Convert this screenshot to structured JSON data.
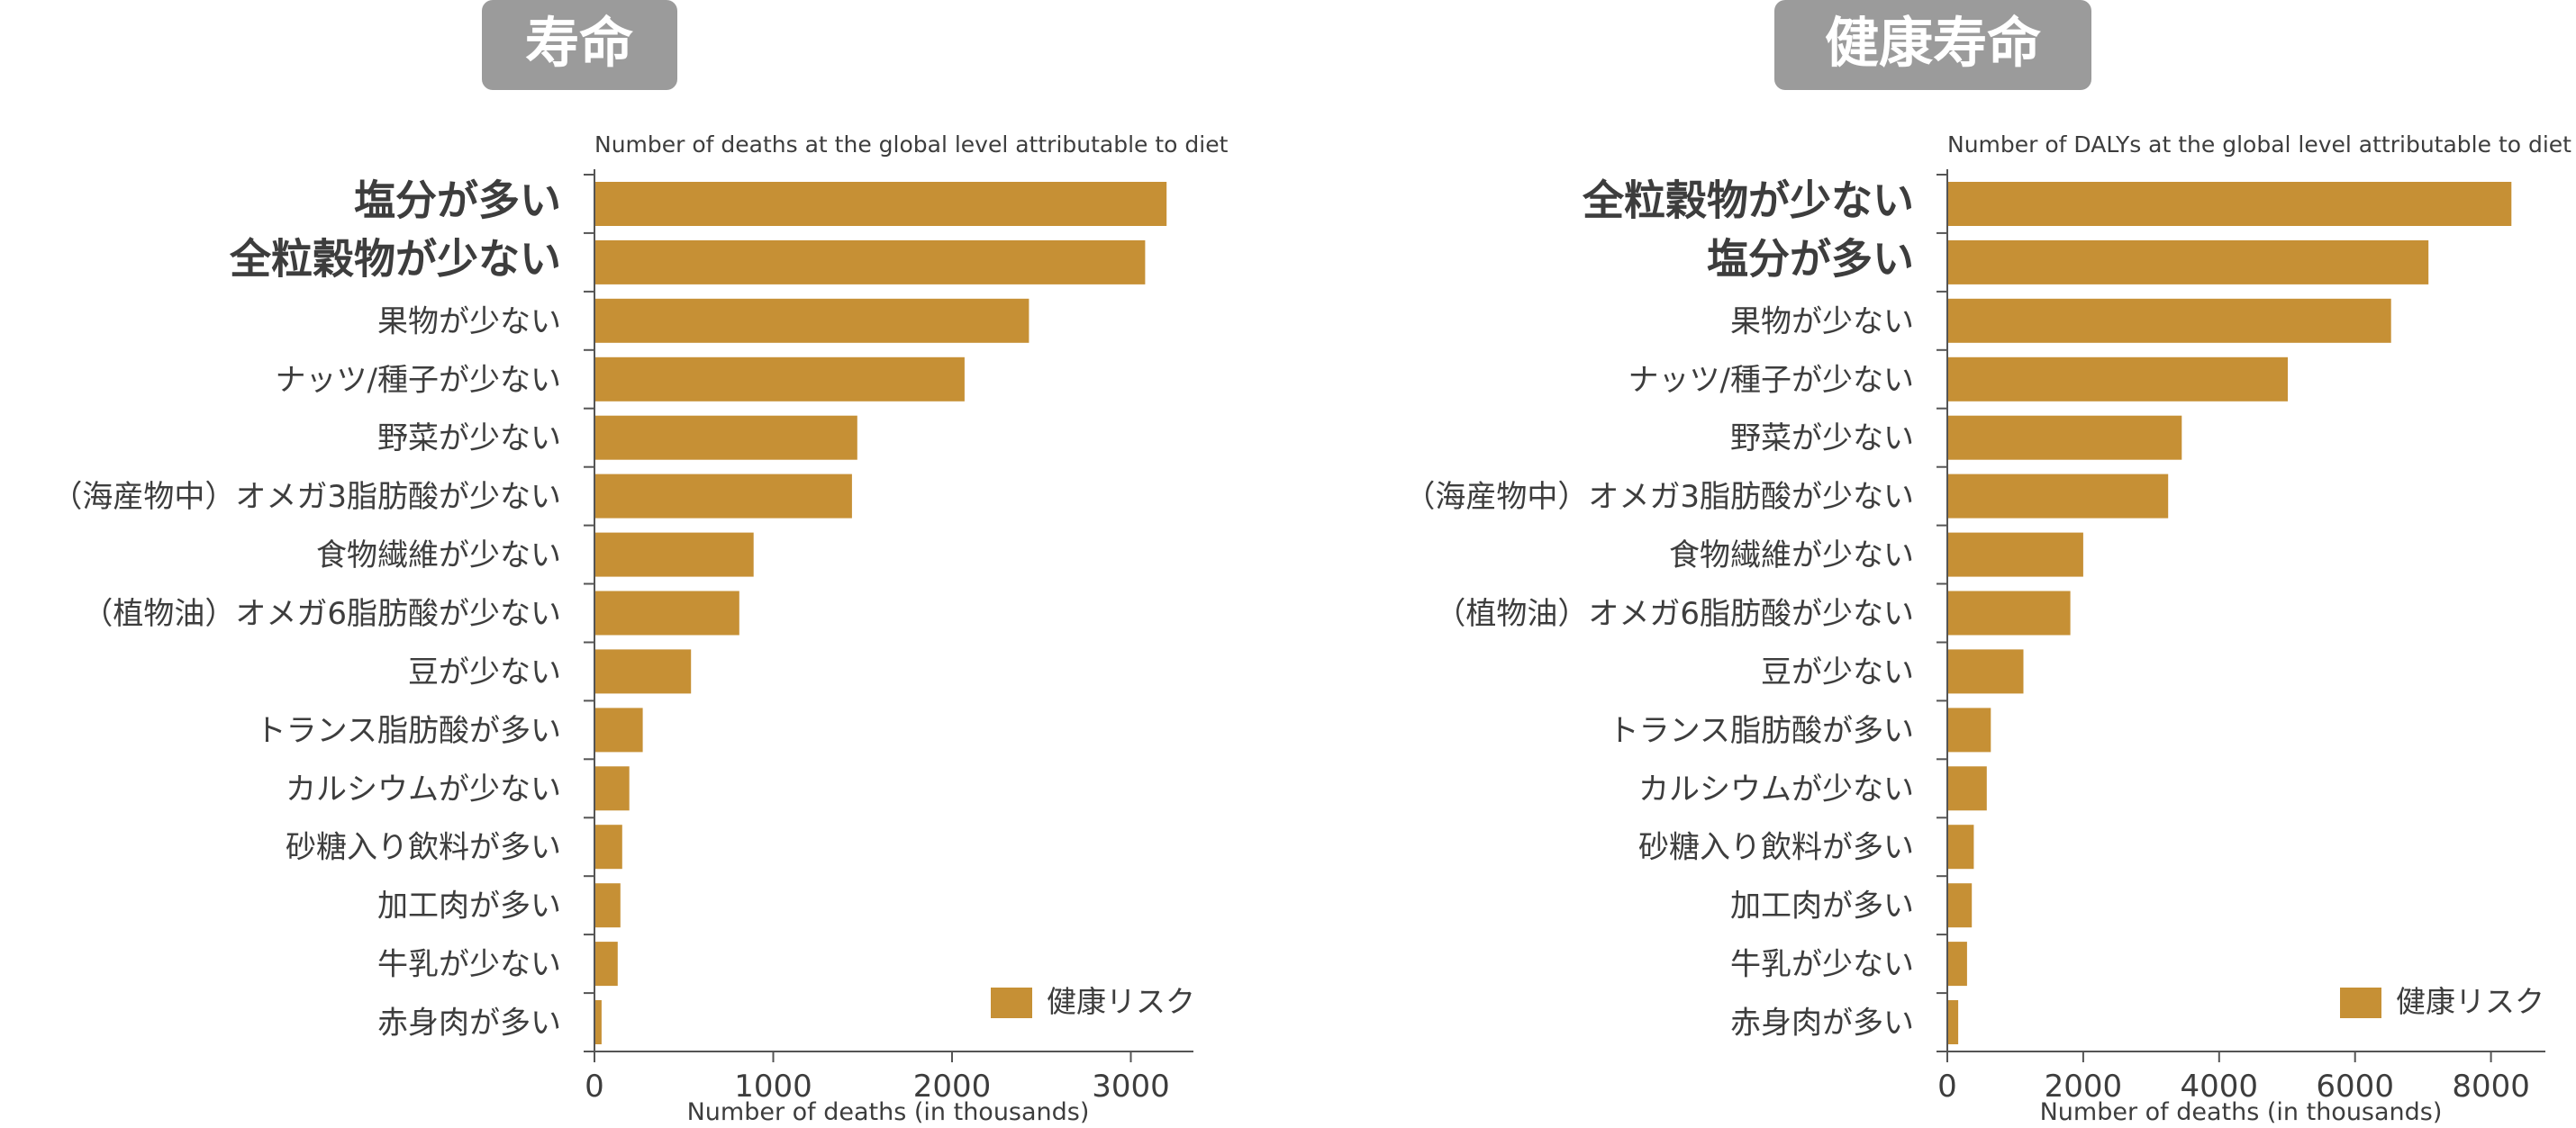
{
  "colors": {
    "bar": "#C69035",
    "badge": "#9B9B9B",
    "axis": "#555555",
    "text": "#3d3d3d"
  },
  "chart_data": [
    {
      "type": "bar",
      "orientation": "horizontal",
      "badge": "寿命",
      "title": "Number of deaths at the global level attributable to diet",
      "xlabel": "Number of deaths (in thousands)",
      "xlim": [
        0,
        3350
      ],
      "xticks": [
        "0",
        "1000",
        "2000",
        "3000"
      ],
      "xtick_values": [
        0,
        1000,
        2000,
        3000
      ],
      "legend": [
        "健康リスク"
      ],
      "categories": [
        "塩分が多い",
        "全粒穀物が少ない",
        "果物が少ない",
        "ナッツ/種子が少ない",
        "野菜が少ない",
        "（海産物中）オメガ3脂肪酸が少ない",
        "食物繊維が少ない",
        "（植物油）オメガ6脂肪酸が少ない",
        "豆が少ない",
        "トランス脂肪酸が多い",
        "カルシウムが少ない",
        "砂糖入り飲料が多い",
        "加工肉が多い",
        "牛乳が少ない",
        "赤身肉が多い"
      ],
      "values": [
        3200,
        3080,
        2430,
        2070,
        1470,
        1440,
        890,
        810,
        540,
        270,
        195,
        155,
        145,
        130,
        40
      ]
    },
    {
      "type": "bar",
      "orientation": "horizontal",
      "badge": "健康寿命",
      "title": "Number of DALYs at the global level attributable to diet",
      "xlabel": "Number of deaths (in thousands)",
      "xlim": [
        0,
        8800
      ],
      "xticks": [
        "0",
        "2000",
        "4000",
        "6000",
        "8000"
      ],
      "xtick_values": [
        0,
        2000,
        4000,
        6000,
        8000
      ],
      "legend": [
        "健康リスク"
      ],
      "categories": [
        "全粒穀物が少ない",
        "塩分が多い",
        "果物が少ない",
        "ナッツ/種子が少ない",
        "野菜が少ない",
        "（海産物中）オメガ3脂肪酸が少ない",
        "食物繊維が少ない",
        "（植物油）オメガ6脂肪酸が少ない",
        "豆が少ない",
        "トランス脂肪酸が多い",
        "カルシウムが少ない",
        "砂糖入り飲料が多い",
        "加工肉が多い",
        "牛乳が少ない",
        "赤身肉が多い"
      ],
      "values": [
        8300,
        7080,
        6530,
        5010,
        3450,
        3250,
        2000,
        1810,
        1120,
        640,
        580,
        390,
        360,
        290,
        160
      ]
    }
  ]
}
